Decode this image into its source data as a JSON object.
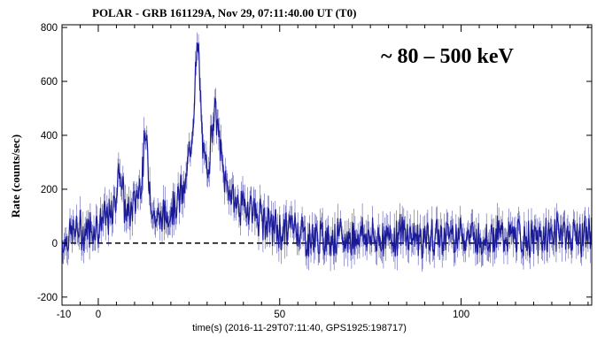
{
  "chart_data": {
    "type": "line",
    "title": "POLAR - GRB 161129A, Nov 29, 07:11:40.00 UT (T0)",
    "annotation": "~ 80 – 500 keV",
    "xlabel": "time(s) (2016-11-29T07:11:40, GPS1925:198717)",
    "ylabel": "Rate (counts/sec)",
    "xlim": [
      -10,
      136
    ],
    "ylim": [
      -230,
      810
    ],
    "x_ticks": [
      -10,
      0,
      50,
      100
    ],
    "x_tick_labels": [
      "-10",
      "0",
      "50",
      "100"
    ],
    "y_ticks": [
      -200,
      0,
      200,
      400,
      600,
      800
    ],
    "y_tick_labels": [
      "-200",
      "0",
      "200",
      "400",
      "600",
      "800"
    ],
    "baseline": 0,
    "grid": false,
    "colors": {
      "series": "#1a1a99",
      "baseline": "#000000"
    },
    "series": [
      {
        "x": [
          -10,
          -8,
          -6,
          -4,
          -2,
          0,
          2,
          4,
          5,
          6,
          7,
          8,
          9,
          10,
          12,
          13,
          14,
          15,
          16,
          17,
          18,
          20,
          22,
          24,
          25,
          26,
          27,
          27.5,
          28,
          28.5,
          29,
          30,
          31,
          32,
          33,
          34,
          35,
          36,
          38,
          40,
          42,
          44,
          46,
          48,
          50,
          52,
          54,
          56,
          58,
          60,
          62,
          64,
          66,
          68,
          70,
          72,
          74,
          76,
          78,
          80,
          85,
          90,
          95,
          100,
          105,
          110,
          115,
          120,
          125,
          128,
          130,
          132,
          134,
          136
        ],
        "y": [
          0,
          30,
          50,
          40,
          60,
          70,
          90,
          100,
          200,
          300,
          150,
          100,
          120,
          150,
          250,
          400,
          250,
          120,
          80,
          100,
          90,
          130,
          160,
          200,
          320,
          450,
          650,
          750,
          580,
          420,
          320,
          260,
          380,
          520,
          420,
          300,
          230,
          200,
          150,
          130,
          140,
          100,
          80,
          60,
          40,
          50,
          70,
          40,
          10,
          20,
          10,
          30,
          20,
          10,
          20,
          40,
          30,
          10,
          30,
          20,
          40,
          10,
          30,
          40,
          20,
          30,
          20,
          10,
          30,
          60,
          10,
          40,
          20,
          30
        ]
      }
    ]
  }
}
